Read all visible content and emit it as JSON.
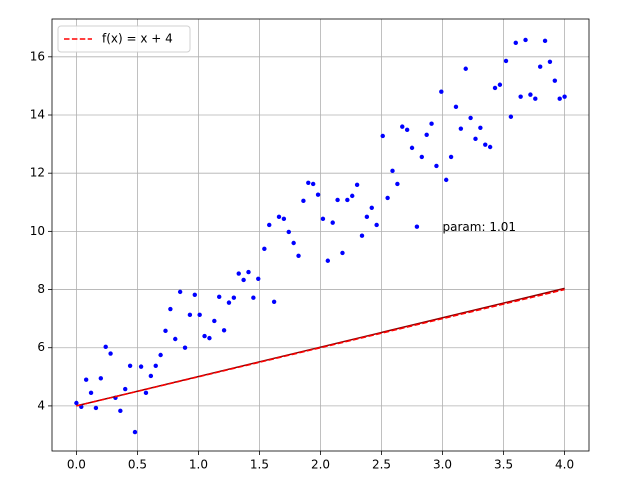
{
  "chart_data": {
    "type": "scatter",
    "xlim": [
      -0.2,
      4.2
    ],
    "ylim": [
      2.45,
      17.3
    ],
    "xticks": [
      {
        "value": 0,
        "label": "0.0"
      },
      0.5,
      {
        "value": 1,
        "label": "1.0"
      },
      1.5,
      {
        "value": 2,
        "label": "2.0"
      },
      2.5,
      {
        "value": 3,
        "label": "3.0"
      },
      3.5,
      {
        "value": 4,
        "label": "4.0"
      }
    ],
    "yticks": [
      4,
      6,
      8,
      10,
      12,
      14,
      16
    ],
    "grid": true,
    "legend": "upper left",
    "annotation": {
      "text": "param: 1.01",
      "x": 3.0,
      "y": 10
    },
    "series": [
      {
        "style": "scatter",
        "color": "#0000ff",
        "x": [
          0,
          0.04,
          0.08,
          0.12,
          0.16,
          0.2,
          0.24,
          0.28,
          0.32,
          0.36,
          0.4,
          0.44,
          0.48,
          0.53,
          0.57,
          0.61,
          0.65,
          0.69,
          0.73,
          0.77,
          0.81,
          0.85,
          0.89,
          0.93,
          0.97,
          1.01,
          1.05,
          1.09,
          1.13,
          1.17,
          1.21,
          1.25,
          1.29,
          1.33,
          1.37,
          1.41,
          1.45,
          1.49,
          1.54,
          1.58,
          1.62,
          1.66,
          1.7,
          1.74,
          1.78,
          1.82,
          1.86,
          1.9,
          1.94,
          1.98,
          2.02,
          2.06,
          2.1,
          2.14,
          2.18,
          2.22,
          2.26,
          2.3,
          2.34,
          2.38,
          2.42,
          2.46,
          2.51,
          2.55,
          2.59,
          2.63,
          2.67,
          2.71,
          2.75,
          2.79,
          2.83,
          2.87,
          2.91,
          2.95,
          2.99,
          3.03,
          3.07,
          3.11,
          3.15,
          3.19,
          3.23,
          3.27,
          3.31,
          3.35,
          3.39,
          3.43,
          3.47,
          3.52,
          3.56,
          3.6,
          3.64,
          3.68,
          3.72,
          3.76,
          3.8,
          3.84,
          3.88,
          3.92,
          3.96,
          4.0
        ],
        "values": [
          4.1,
          3.97,
          4.9,
          4.45,
          3.93,
          4.95,
          6.03,
          5.8,
          4.28,
          3.83,
          4.58,
          5.38,
          3.1,
          5.35,
          4.45,
          5.03,
          5.38,
          5.75,
          6.58,
          7.33,
          6.3,
          7.92,
          6.0,
          7.13,
          7.82,
          7.13,
          6.4,
          6.33,
          6.92,
          7.75,
          6.6,
          7.55,
          7.72,
          8.55,
          8.33,
          8.6,
          7.72,
          8.37,
          9.4,
          10.22,
          7.58,
          10.5,
          10.43,
          9.98,
          9.6,
          9.16,
          11.05,
          11.67,
          11.63,
          11.26,
          10.43,
          8.99,
          10.3,
          11.08,
          9.26,
          11.08,
          11.22,
          11.6,
          9.85,
          10.5,
          10.81,
          10.22,
          13.28,
          11.15,
          12.08,
          11.63,
          13.6,
          13.49,
          12.87,
          10.16,
          12.56,
          13.32,
          13.7,
          12.25,
          14.8,
          11.77,
          12.56,
          14.28,
          13.53,
          15.59,
          13.9,
          13.18,
          13.56,
          12.98,
          12.9,
          14.93,
          15.04,
          15.86,
          13.94,
          16.48,
          14.63,
          16.58,
          14.7,
          14.56,
          15.66,
          16.55,
          15.83,
          15.18,
          14.56,
          14.63
        ]
      },
      {
        "style": "line",
        "color": "#8b0000",
        "linestyle": "solid",
        "x": [
          0,
          4
        ],
        "values": [
          4.0,
          8.04
        ]
      },
      {
        "style": "line",
        "name": "f(x) = x + 4",
        "color": "#ff0000",
        "linestyle": "dashed",
        "x": [
          0,
          4
        ],
        "values": [
          4,
          8
        ]
      }
    ]
  }
}
